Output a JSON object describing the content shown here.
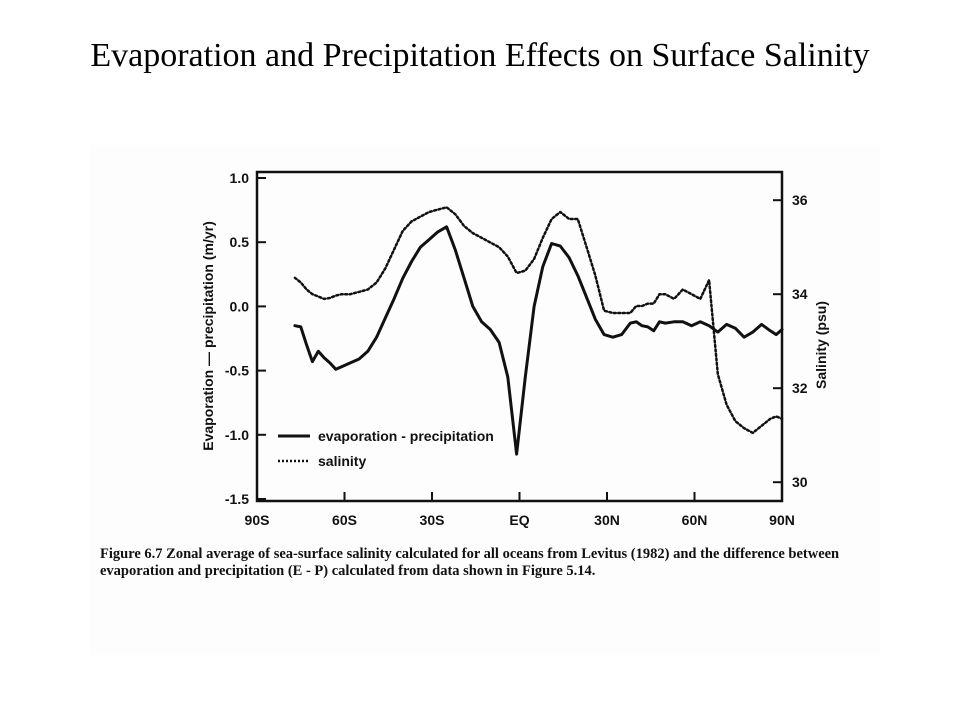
{
  "slide": {
    "title": "Evaporation and Precipitation Effects on Surface Salinity"
  },
  "caption": "Figure 6.7 Zonal average of sea-surface salinity calculated for all oceans from Levitus (1982) and the difference between evaporation and precipitation (E - P) calculated from data shown in Figure 5.14.",
  "chart_data": {
    "type": "line",
    "xlabel": "",
    "ylabel": "Evaporation — precipitation (m/yr)",
    "y2label": "Salinity (psu)",
    "x_tick_labels": [
      "90S",
      "60S",
      "30S",
      "EQ",
      "30N",
      "60N",
      "90N"
    ],
    "x_tick_values": [
      -90,
      -60,
      -30,
      0,
      30,
      60,
      90
    ],
    "y_tick_labels": [
      "1.0",
      "0.5",
      "0.0",
      "-0.5",
      "-1.0",
      "-1.5"
    ],
    "y_tick_values": [
      1.0,
      0.5,
      0.0,
      -0.5,
      -1.0,
      -1.5
    ],
    "y2_tick_labels": [
      "36",
      "34",
      "32",
      "30"
    ],
    "y2_tick_values": [
      36,
      34,
      32,
      30
    ],
    "xlim": [
      -90,
      90
    ],
    "ylim": [
      -1.5,
      1.0
    ],
    "y2lim": [
      29.6,
      36.6
    ],
    "grid": false,
    "legend_position": "bottom-left",
    "series": [
      {
        "name": "evaporation - precipitation",
        "axis": "left",
        "style": "solid",
        "x": [
          -77,
          -75,
          -73,
          -71,
          -69,
          -67,
          -65,
          -63,
          -61,
          -58,
          -55,
          -52,
          -49,
          -46,
          -43,
          -40,
          -37,
          -34,
          -31,
          -28,
          -25,
          -22,
          -19,
          -16,
          -13,
          -10,
          -7,
          -4,
          -1,
          2,
          5,
          8,
          11,
          14,
          17,
          20,
          23,
          26,
          29,
          32,
          35,
          38,
          40,
          42,
          44,
          46,
          48,
          50,
          53,
          56,
          59,
          62,
          65,
          68,
          71,
          74,
          77,
          80,
          83,
          86,
          88,
          90
        ],
        "y": [
          -0.15,
          -0.16,
          -0.3,
          -0.43,
          -0.35,
          -0.4,
          -0.44,
          -0.49,
          -0.47,
          -0.44,
          -0.41,
          -0.35,
          -0.24,
          -0.09,
          0.06,
          0.22,
          0.35,
          0.46,
          0.52,
          0.58,
          0.62,
          0.44,
          0.22,
          0.0,
          -0.12,
          -0.18,
          -0.28,
          -0.55,
          -1.15,
          -0.55,
          0.0,
          0.31,
          0.49,
          0.47,
          0.38,
          0.24,
          0.07,
          -0.1,
          -0.22,
          -0.24,
          -0.22,
          -0.13,
          -0.12,
          -0.15,
          -0.16,
          -0.19,
          -0.12,
          -0.13,
          -0.12,
          -0.12,
          -0.15,
          -0.12,
          -0.15,
          -0.2,
          -0.14,
          -0.17,
          -0.24,
          -0.2,
          -0.14,
          -0.19,
          -0.22,
          -0.18
        ]
      },
      {
        "name": "salinity",
        "axis": "right",
        "style": "dotted",
        "x": [
          -77,
          -75,
          -73,
          -71,
          -69,
          -67,
          -65,
          -63,
          -61,
          -58,
          -55,
          -52,
          -49,
          -46,
          -43,
          -40,
          -37,
          -34,
          -31,
          -28,
          -25,
          -22,
          -19,
          -16,
          -13,
          -10,
          -7,
          -4,
          -1,
          2,
          5,
          8,
          11,
          14,
          17,
          20,
          23,
          26,
          29,
          32,
          35,
          38,
          40,
          42,
          44,
          46,
          48,
          50,
          53,
          56,
          59,
          62,
          65,
          68,
          71,
          74,
          77,
          80,
          83,
          86,
          88,
          90
        ],
        "y": [
          34.35,
          34.25,
          34.1,
          34.0,
          33.95,
          33.9,
          33.92,
          33.97,
          34.0,
          34.0,
          34.05,
          34.1,
          34.25,
          34.55,
          34.95,
          35.35,
          35.55,
          35.65,
          35.75,
          35.8,
          35.85,
          35.7,
          35.45,
          35.3,
          35.2,
          35.1,
          35.0,
          34.8,
          34.45,
          34.5,
          34.75,
          35.2,
          35.6,
          35.75,
          35.6,
          35.6,
          35.0,
          34.4,
          33.65,
          33.6,
          33.6,
          33.6,
          33.75,
          33.75,
          33.8,
          33.8,
          34.0,
          34.0,
          33.9,
          34.1,
          34.0,
          33.9,
          34.3,
          32.3,
          31.65,
          31.3,
          31.15,
          31.05,
          31.2,
          31.35,
          31.4,
          31.35
        ]
      }
    ]
  }
}
